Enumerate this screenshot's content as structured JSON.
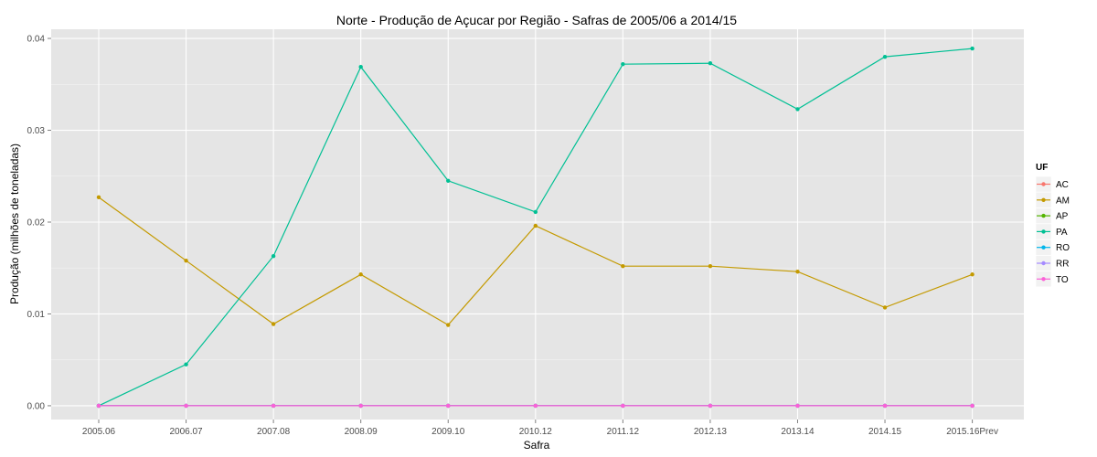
{
  "chart_data": {
    "type": "line",
    "title": "Norte  - Produção de Açucar por Região - Safras de 2005/06 a 2014/15",
    "xlabel": "Safra",
    "ylabel": "Produção (milhões de toneladas)",
    "categories": [
      "2005.06",
      "2006.07",
      "2007.08",
      "2008.09",
      "2009.10",
      "2010.12",
      "2011.12",
      "2012.13",
      "2013.14",
      "2014.15",
      "2015.16Prev"
    ],
    "ylim": [
      -0.0015,
      0.041
    ],
    "yticks": [
      0.0,
      0.01,
      0.02,
      0.03,
      0.04
    ],
    "ytick_labels": [
      "0.00",
      "0.01",
      "0.02",
      "0.03",
      "0.04"
    ],
    "grid": true,
    "legend": {
      "title": "UF",
      "position": "right"
    },
    "series": [
      {
        "name": "AC",
        "color": "#F8766D",
        "values": [
          0,
          0,
          0,
          0,
          0,
          0,
          0,
          0,
          0,
          0,
          0
        ]
      },
      {
        "name": "AM",
        "color": "#C49A00",
        "values": [
          0.0227,
          0.0158,
          0.0089,
          0.0143,
          0.0088,
          0.0196,
          0.0152,
          0.0152,
          0.0146,
          0.0107,
          0.0143
        ]
      },
      {
        "name": "AP",
        "color": "#53B400",
        "values": [
          0,
          0,
          0,
          0,
          0,
          0,
          0,
          0,
          0,
          0,
          0
        ]
      },
      {
        "name": "PA",
        "color": "#00C094",
        "values": [
          0.0,
          0.0045,
          0.0163,
          0.0369,
          0.0245,
          0.0211,
          0.0372,
          0.0373,
          0.0323,
          0.038,
          0.0389
        ]
      },
      {
        "name": "RO",
        "color": "#00B6EB",
        "values": [
          0,
          0,
          0,
          0,
          0,
          0,
          0,
          0,
          0,
          0,
          0
        ]
      },
      {
        "name": "RR",
        "color": "#A58AFF",
        "values": [
          0,
          0,
          0,
          0,
          0,
          0,
          0,
          0,
          0,
          0,
          0
        ]
      },
      {
        "name": "TO",
        "color": "#FB61D7",
        "values": [
          0,
          0,
          0,
          0,
          0,
          0,
          0,
          0,
          0,
          0,
          0
        ]
      }
    ]
  }
}
